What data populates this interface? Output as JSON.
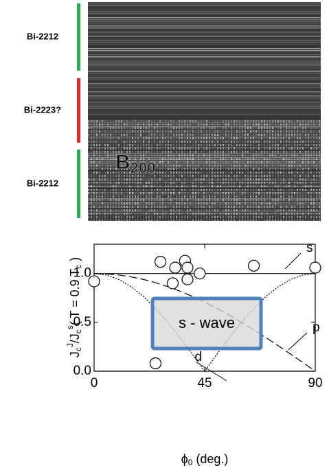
{
  "image_labels": {
    "layers": [
      "Bi-2212",
      "Bi-2223?",
      "Bi-2212"
    ],
    "layer_colors": [
      "#22b14c",
      "#e8262b",
      "#22b14c"
    ],
    "overlay": [
      "B",
      "200"
    ]
  },
  "chart_data": {
    "type": "scatter",
    "x": [
      0,
      5,
      10,
      15,
      20,
      25,
      30,
      35,
      40,
      45,
      50,
      55,
      60,
      65,
      70,
      75,
      80,
      85,
      90
    ],
    "series": [
      {
        "name": "s",
        "dash": "solid",
        "values": [
          1,
          1,
          1,
          1,
          1,
          1,
          1,
          1,
          1,
          1,
          1,
          1,
          1,
          1,
          1,
          1,
          1,
          1,
          1
        ]
      },
      {
        "name": "p",
        "dash": "dashed",
        "values": [
          1,
          0.996,
          0.985,
          0.966,
          0.94,
          0.906,
          0.866,
          0.819,
          0.766,
          0.707,
          0.643,
          0.574,
          0.5,
          0.423,
          0.342,
          0.259,
          0.174,
          0.087,
          0
        ]
      },
      {
        "name": "d",
        "dash": "dotted",
        "values": [
          1,
          0.985,
          0.94,
          0.866,
          0.766,
          0.643,
          0.5,
          0.342,
          0.174,
          0,
          0.174,
          0.342,
          0.5,
          0.643,
          0.766,
          0.866,
          0.94,
          0.985,
          1
        ]
      }
    ],
    "points": {
      "x": [
        0,
        25,
        27,
        33,
        32,
        37,
        38,
        38,
        43,
        65,
        90
      ],
      "values": [
        0.92,
        0.08,
        1.12,
        1.06,
        0.9,
        1.13,
        1.06,
        0.94,
        1.0,
        1.08,
        1.06
      ]
    },
    "xlim": [
      0,
      90
    ],
    "xticks": [
      0,
      45,
      90
    ],
    "ylim": [
      0,
      1.3
    ],
    "yticks": [
      {
        "value": 0,
        "label": "0.0"
      },
      {
        "value": 0.5,
        "label": "0.5"
      },
      {
        "value": 1,
        "label": "1.0"
      }
    ],
    "xlabel": [
      "ϕ",
      "0",
      " (deg.)"
    ],
    "ylabel": [
      "J",
      "c",
      "J",
      "/J",
      "c",
      "s",
      "( T = 0.9 T",
      "c",
      " )"
    ],
    "annotation": "s - wave"
  }
}
